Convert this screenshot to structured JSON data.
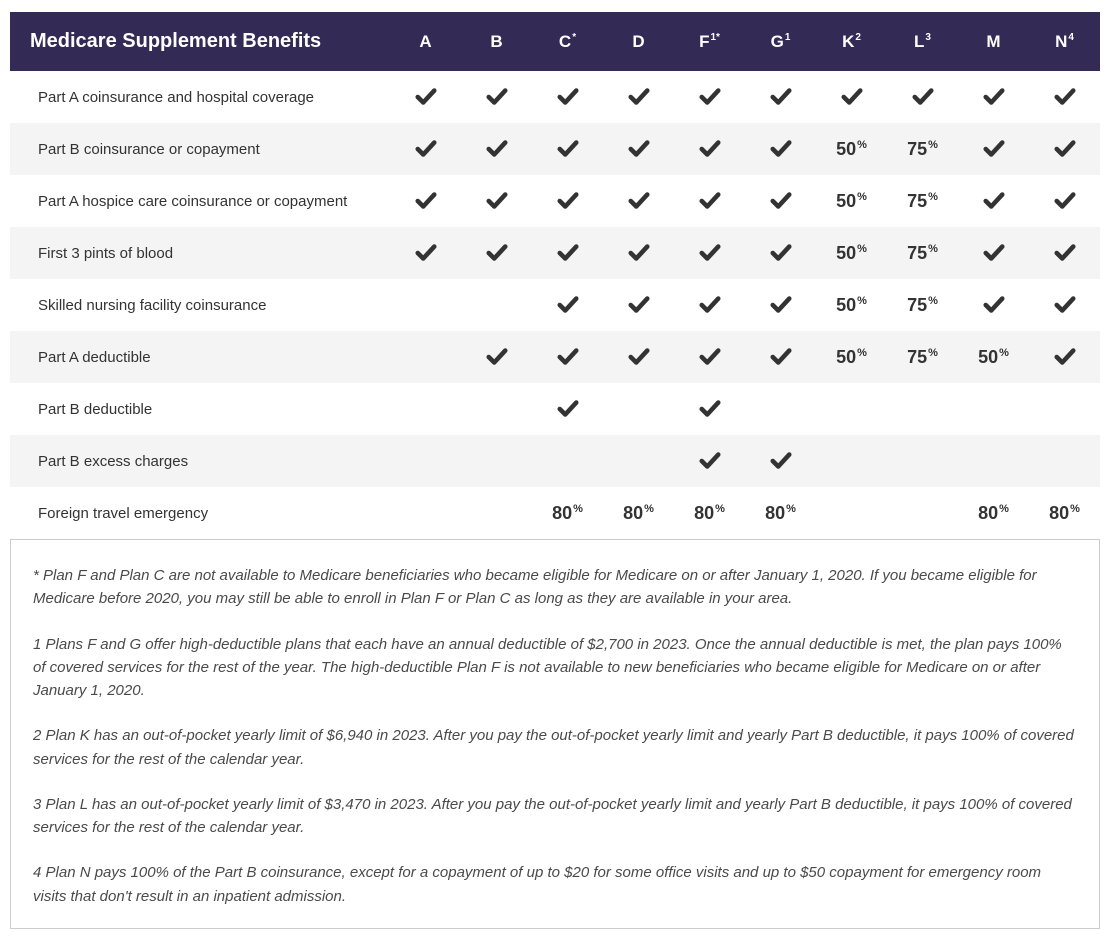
{
  "header": {
    "title": "Medicare Supplement Benefits",
    "columns": [
      {
        "label": "A",
        "sup": ""
      },
      {
        "label": "B",
        "sup": ""
      },
      {
        "label": "C",
        "sup": "*"
      },
      {
        "label": "D",
        "sup": ""
      },
      {
        "label": "F",
        "sup": "1*"
      },
      {
        "label": "G",
        "sup": "1"
      },
      {
        "label": "K",
        "sup": "2"
      },
      {
        "label": "L",
        "sup": "3"
      },
      {
        "label": "M",
        "sup": ""
      },
      {
        "label": "N",
        "sup": "4"
      }
    ]
  },
  "rows": [
    {
      "label": "Part A coinsurance and hospital coverage",
      "cells": [
        "check",
        "check",
        "check",
        "check",
        "check",
        "check",
        "check",
        "check",
        "check",
        "check"
      ]
    },
    {
      "label": "Part B coinsurance or copayment",
      "cells": [
        "check",
        "check",
        "check",
        "check",
        "check",
        "check",
        "50",
        "75",
        "check",
        "check"
      ]
    },
    {
      "label": "Part A hospice care coinsurance or copayment",
      "cells": [
        "check",
        "check",
        "check",
        "check",
        "check",
        "check",
        "50",
        "75",
        "check",
        "check"
      ]
    },
    {
      "label": "First 3 pints of blood",
      "cells": [
        "check",
        "check",
        "check",
        "check",
        "check",
        "check",
        "50",
        "75",
        "check",
        "check"
      ]
    },
    {
      "label": "Skilled nursing facility coinsurance",
      "cells": [
        "",
        "",
        "check",
        "check",
        "check",
        "check",
        "50",
        "75",
        "check",
        "check"
      ]
    },
    {
      "label": "Part A deductible",
      "cells": [
        "",
        "check",
        "check",
        "check",
        "check",
        "check",
        "50",
        "75",
        "50",
        "check"
      ]
    },
    {
      "label": "Part B deductible",
      "cells": [
        "",
        "",
        "check",
        "",
        "check",
        "",
        "",
        "",
        "",
        ""
      ]
    },
    {
      "label": "Part B excess charges",
      "cells": [
        "",
        "",
        "",
        "",
        "check",
        "check",
        "",
        "",
        "",
        ""
      ]
    },
    {
      "label": "Foreign travel emergency",
      "cells": [
        "",
        "",
        "80",
        "80",
        "80",
        "80",
        "",
        "",
        "80",
        "80"
      ]
    }
  ],
  "footnotes": [
    "* Plan F and Plan C are not available to Medicare beneficiaries who became eligible for Medicare on or after January 1, 2020. If you became eligible for Medicare before 2020, you may still be able to enroll in Plan F or Plan C as long as they are available in your area.",
    "1 Plans F and G offer high-deductible plans that each have an annual deductible of $2,700 in 2023. Once the annual deductible is met, the plan pays 100% of covered services for the rest of the year. The high-deductible Plan F is not available to new beneficiaries who became eligible for Medicare on or after January 1, 2020.",
    "2 Plan K has an out-of-pocket yearly limit of $6,940 in 2023. After you pay the out-of-pocket yearly limit and yearly Part B deductible, it pays 100% of covered services for the rest of the calendar year.",
    "3 Plan L has an out-of-pocket yearly limit of $3,470 in 2023. After you pay the out-of-pocket yearly limit and yearly Part B deductible, it pays 100% of covered services for the rest of the calendar year.",
    "4 Plan N pays 100% of the Part B coinsurance, except for a copayment of up to $20 for some office visits and up to $50 copayment for emergency room visits that don't result in an inpatient admission."
  ],
  "colors": {
    "header_bg": "#332a56",
    "header_text": "#ffffff",
    "row_alt_bg": "#f4f4f4",
    "text": "#333333",
    "footnote_border": "#cccccc",
    "check_color": "#333333"
  },
  "style": {
    "title_fontsize": 20,
    "col_header_fontsize": 17,
    "body_fontsize": 15,
    "pct_fontsize": 18,
    "footnote_fontsize": 15,
    "check_width": 26,
    "check_height": 22
  }
}
